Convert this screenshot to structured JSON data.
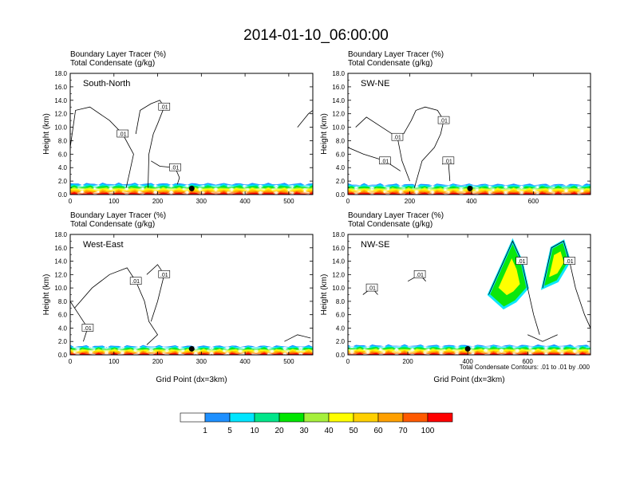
{
  "title": "2014-01-10_06:00:00",
  "colors": {
    "levels": [
      "#ffffff",
      "#1e90ff",
      "#00e5ff",
      "#00e68a",
      "#00e600",
      "#a6f03c",
      "#ffff00",
      "#ffd000",
      "#ffa000",
      "#ff5a00",
      "#ff0000"
    ]
  },
  "colorbar": {
    "labels": [
      "1",
      "5",
      "10",
      "20",
      "30",
      "40",
      "50",
      "60",
      "70",
      "100"
    ]
  },
  "footnote": "Total Condensate Contours: .01 to .01 by .000",
  "chart_data": [
    {
      "type": "contour",
      "name": "South-North",
      "field_label": "Boundary Layer Tracer   (%)",
      "contour_label": "Total Condensate   (g/kg)",
      "ylabel": "Height (km)",
      "xlabel": "",
      "xlim": [
        0,
        555
      ],
      "ylim": [
        0,
        18
      ],
      "xticks": [
        "0",
        "100",
        "200",
        "300",
        "400",
        "500"
      ],
      "yticks": [
        "0.0",
        "2.0",
        "4.0",
        "6.0",
        "8.0",
        "10.0",
        "12.0",
        "14.0",
        "16.0",
        "18.0"
      ],
      "contour_labels": [
        ".01",
        ".01",
        ".01"
      ],
      "marker_x": 278,
      "boundary_layer_top_km": 1.6,
      "cloud_outlines": [
        [
          [
            0,
            7
          ],
          [
            12,
            12.5
          ],
          [
            45,
            13
          ],
          [
            90,
            11
          ],
          [
            120,
            9
          ],
          [
            145,
            6
          ],
          [
            135,
            3
          ],
          [
            128,
            1
          ]
        ],
        [
          [
            150,
            9
          ],
          [
            160,
            12.5
          ],
          [
            185,
            13.5
          ],
          [
            205,
            14
          ],
          [
            215,
            13
          ],
          [
            200,
            10.5
          ],
          [
            190,
            9
          ],
          [
            180,
            6
          ],
          [
            178,
            1
          ]
        ],
        [
          [
            185,
            5
          ],
          [
            205,
            4.2
          ],
          [
            240,
            4
          ],
          [
            250,
            2.5
          ],
          [
            245,
            1.5
          ]
        ],
        [
          [
            520,
            10
          ],
          [
            545,
            12
          ],
          [
            555,
            12.5
          ]
        ]
      ]
    },
    {
      "type": "contour",
      "name": "SW-NE",
      "field_label": "Boundary Layer Tracer   (%)",
      "contour_label": "Total Condensate   (g/kg)",
      "ylabel": "Height (km)",
      "xlabel": "",
      "xlim": [
        0,
        785
      ],
      "ylim": [
        0,
        18
      ],
      "xticks": [
        "0",
        "200",
        "400",
        "600"
      ],
      "yticks": [
        "0.0",
        "2.0",
        "4.0",
        "6.0",
        "8.0",
        "10.0",
        "12.0",
        "14.0",
        "16.0",
        "18.0"
      ],
      "contour_labels": [
        ".01",
        ".01",
        ".01",
        ".01"
      ],
      "marker_x": 395,
      "boundary_layer_top_km": 1.5,
      "cloud_outlines": [
        [
          [
            25,
            10
          ],
          [
            60,
            11.5
          ],
          [
            110,
            10
          ],
          [
            160,
            8.5
          ],
          [
            175,
            5
          ],
          [
            200,
            2
          ]
        ],
        [
          [
            180,
            9
          ],
          [
            205,
            11
          ],
          [
            220,
            12.5
          ],
          [
            250,
            13
          ],
          [
            290,
            12.5
          ],
          [
            310,
            11
          ],
          [
            300,
            9
          ],
          [
            280,
            7
          ],
          [
            240,
            5
          ],
          [
            215,
            1
          ]
        ],
        [
          [
            0,
            7
          ],
          [
            50,
            6
          ],
          [
            120,
            5
          ],
          [
            170,
            3.5
          ]
        ],
        [
          [
            305,
            4.5
          ],
          [
            325,
            5
          ],
          [
            330,
            2
          ]
        ]
      ]
    },
    {
      "type": "contour",
      "name": "West-East",
      "field_label": "Boundary Layer Tracer   (%)",
      "contour_label": "Total Condensate   (g/kg)",
      "ylabel": "Height (km)",
      "xlabel": "Grid Point (dx=3km)",
      "xlim": [
        0,
        555
      ],
      "ylim": [
        0,
        18
      ],
      "xticks": [
        "0",
        "100",
        "200",
        "300",
        "400",
        "500"
      ],
      "yticks": [
        "0.0",
        "2.0",
        "4.0",
        "6.0",
        "8.0",
        "10.0",
        "12.0",
        "14.0",
        "16.0",
        "18.0"
      ],
      "contour_labels": [
        ".01",
        ".01",
        ".01"
      ],
      "marker_x": 278,
      "boundary_layer_top_km": 1.3,
      "cloud_outlines": [
        [
          [
            10,
            7
          ],
          [
            50,
            10
          ],
          [
            90,
            12
          ],
          [
            130,
            13
          ],
          [
            150,
            11
          ],
          [
            170,
            8
          ],
          [
            180,
            5
          ],
          [
            200,
            3
          ],
          [
            175,
            1.5
          ]
        ],
        [
          [
            175,
            12
          ],
          [
            200,
            13.5
          ],
          [
            215,
            12
          ],
          [
            200,
            8
          ],
          [
            185,
            5
          ]
        ],
        [
          [
            0,
            8
          ],
          [
            20,
            6
          ],
          [
            40,
            4
          ],
          [
            30,
            2
          ]
        ],
        [
          [
            490,
            2
          ],
          [
            520,
            3
          ],
          [
            550,
            2.5
          ]
        ]
      ]
    },
    {
      "type": "contour",
      "name": "NW-SE",
      "field_label": "Boundary Layer Tracer   (%)",
      "contour_label": "Total Condensate   (g/kg)",
      "ylabel": "Height (km)",
      "xlabel": "Grid Point (dx=3km)",
      "xlim": [
        0,
        810
      ],
      "ylim": [
        0,
        18
      ],
      "xticks": [
        "0",
        "200",
        "400",
        "600"
      ],
      "yticks": [
        "0.0",
        "2.0",
        "4.0",
        "6.0",
        "8.0",
        "10.0",
        "12.0",
        "14.0",
        "16.0",
        "18.0"
      ],
      "contour_labels": [
        ".01",
        ".01",
        ".01",
        ".01"
      ],
      "marker_x": 400,
      "boundary_layer_top_km": 1.4,
      "cloud_outlines": [
        [
          [
            50,
            9
          ],
          [
            80,
            10
          ],
          [
            100,
            9
          ]
        ],
        [
          [
            200,
            11
          ],
          [
            240,
            12
          ],
          [
            260,
            11
          ]
        ],
        [
          [
            470,
            9
          ],
          [
            520,
            14
          ],
          [
            550,
            17
          ],
          [
            580,
            14
          ],
          [
            600,
            10
          ],
          [
            620,
            6
          ],
          [
            640,
            3
          ]
        ],
        [
          [
            650,
            10
          ],
          [
            680,
            16
          ],
          [
            720,
            17
          ],
          [
            740,
            14
          ],
          [
            760,
            10
          ],
          [
            790,
            6
          ],
          [
            810,
            4
          ]
        ],
        [
          [
            600,
            3
          ],
          [
            650,
            2
          ],
          [
            700,
            3
          ]
        ]
      ],
      "filled_regions": [
        {
          "level": 6,
          "points": [
            [
              470,
              9
            ],
            [
              520,
              14
            ],
            [
              550,
              17
            ],
            [
              580,
              14
            ],
            [
              600,
              10
            ],
            [
              560,
              8
            ],
            [
              520,
              7
            ]
          ]
        },
        {
          "level": 6,
          "points": [
            [
              650,
              10
            ],
            [
              680,
              16
            ],
            [
              720,
              17
            ],
            [
              740,
              14
            ],
            [
              700,
              11
            ]
          ]
        }
      ]
    }
  ]
}
